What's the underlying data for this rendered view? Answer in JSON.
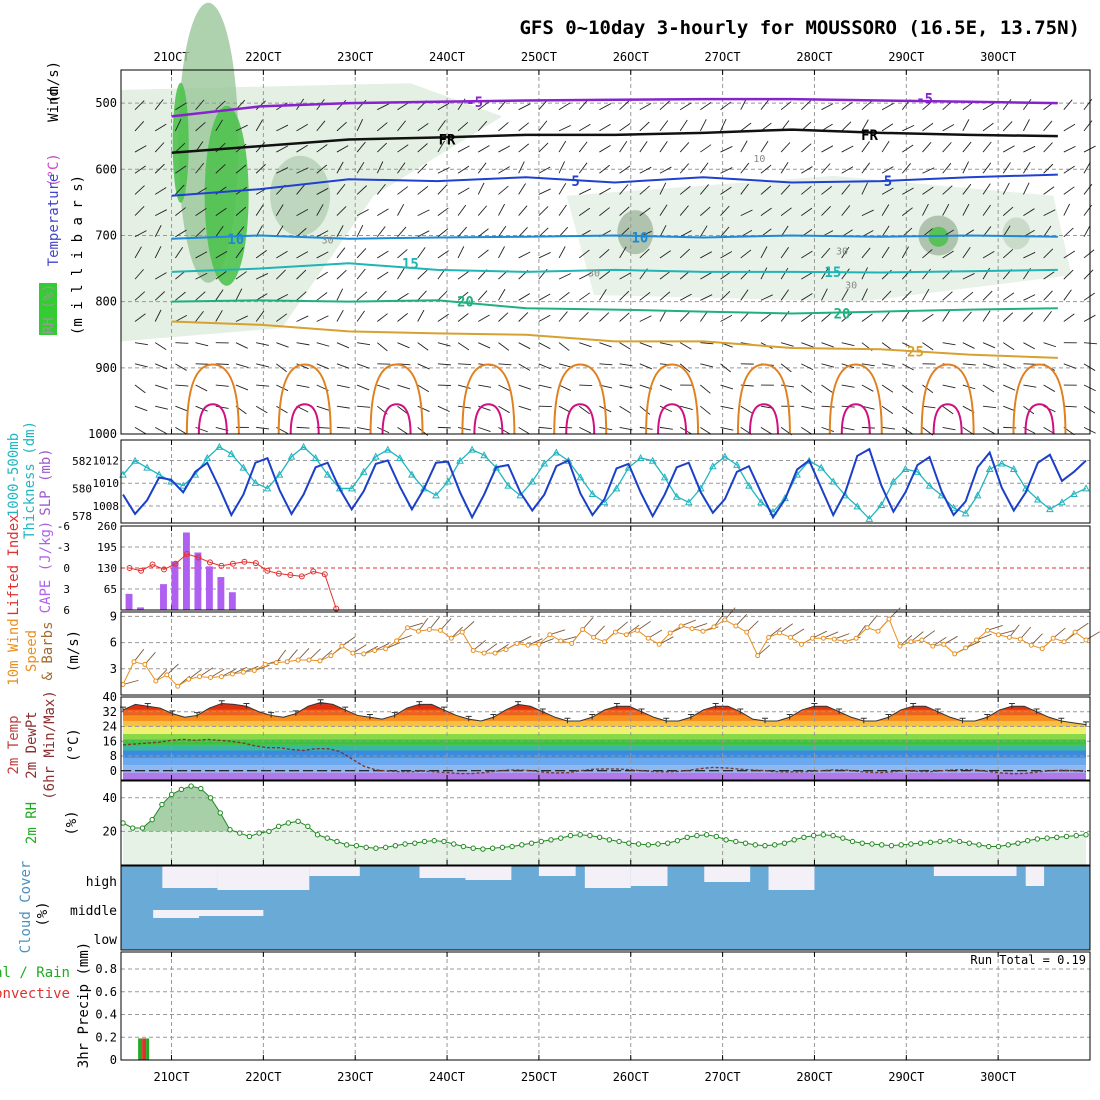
{
  "title": "GFS 0~10day 3-hourly for MOUSSORO (16.5E, 13.75N)",
  "dates": [
    "21OCT",
    "22OCT",
    "23OCT",
    "24OCT",
    "25OCT",
    "26OCT",
    "27OCT",
    "28OCT",
    "29OCT",
    "30OCT"
  ],
  "colors": {
    "temp_label": "#e06060",
    "rh_label": "#22aa22",
    "wind_label": "#000000",
    "thickness": "#22b5c0",
    "slp": "#1a3fc8",
    "lifted": "#e03030",
    "cape": "#b060f0",
    "wind10": "#e89020",
    "rh2m": "#228822",
    "cloud": "#6aaad6",
    "precip_total": "#22aa22",
    "precip_conv": "#e03030"
  },
  "chart_data": [
    {
      "type": "contour",
      "panel": "upper_air",
      "ylabel_wind": "Wind",
      "ylabel_wind_unit": "(m/s)",
      "ylabel_temp": "Temperature",
      "ylabel_temp_unit": "(°C)",
      "ylabel_rh": "RH (%)",
      "ylabel_p": "(m i l l i b a r s)",
      "levels": [
        500,
        600,
        700,
        800,
        900,
        1000
      ],
      "ylim": [
        450,
        1000
      ],
      "grid": true,
      "isotherm_labels": [
        {
          "text": "-5",
          "day": 3.3,
          "p": 498
        },
        {
          "text": "-5",
          "day": 8.2,
          "p": 493
        },
        {
          "text": "FR",
          "day": 3.0,
          "p": 555
        },
        {
          "text": "FR",
          "day": 7.6,
          "p": 548
        },
        {
          "text": "5",
          "day": 4.4,
          "p": 618
        },
        {
          "text": "5",
          "day": 7.8,
          "p": 618
        },
        {
          "text": "10",
          "day": 0.7,
          "p": 705
        },
        {
          "text": "10",
          "day": 5.1,
          "p": 703
        },
        {
          "text": "15",
          "day": 2.6,
          "p": 742
        },
        {
          "text": "15",
          "day": 7.2,
          "p": 755
        },
        {
          "text": "20",
          "day": 3.2,
          "p": 800
        },
        {
          "text": "20",
          "day": 7.3,
          "p": 818
        },
        {
          "text": "25",
          "day": 8.1,
          "p": 875
        }
      ],
      "rh_labels": [
        {
          "text": "10",
          "day": 6.4,
          "p": 583
        },
        {
          "text": "30",
          "day": 1.7,
          "p": 706
        },
        {
          "text": "30",
          "day": 4.6,
          "p": 756
        },
        {
          "text": "30",
          "day": 7.3,
          "p": 723
        },
        {
          "text": "30",
          "day": 7.4,
          "p": 774
        }
      ]
    },
    {
      "type": "line",
      "panel": "slp_thickness",
      "ylabel_left": "1000-500mb",
      "ylabel_left2": "Thickness (dm)",
      "ylabel_right": "SLP (mb)",
      "thickness_ticks": [
        578,
        580,
        582
      ],
      "slp_ticks": [
        1008,
        1010,
        1012
      ],
      "thickness_lim": [
        577.5,
        583.5
      ],
      "slp_lim": [
        1006.5,
        1013.8
      ],
      "thickness": [
        581,
        582,
        581.5,
        581,
        580.5,
        580.2,
        581,
        582.2,
        583,
        582.5,
        581.5,
        580.4,
        580,
        581,
        582.3,
        583,
        582.2,
        581,
        580,
        580,
        581.2,
        582.3,
        582.8,
        582.2,
        581,
        580,
        579.5,
        580.5,
        582,
        582.8,
        582.4,
        581.5,
        580.2,
        579.5,
        580.5,
        581.8,
        582.6,
        582,
        580.8,
        579.6,
        579,
        580,
        581.5,
        582.2,
        582,
        580.8,
        579.4,
        579,
        580,
        581.6,
        582.3,
        581.7,
        580.2,
        579,
        578.3,
        579.3,
        581,
        582,
        581.5,
        580.5,
        579.5,
        578.7,
        577.8,
        578.8,
        580.5,
        581.4,
        581.2,
        580.2,
        579.5,
        578.6,
        578.2,
        579.5,
        581.4,
        581.8,
        581.4,
        580,
        579.2,
        578.5,
        579,
        579.6,
        580
      ],
      "slp": [
        1009,
        1007.3,
        1008.5,
        1010.5,
        1010.3,
        1009.2,
        1011,
        1011.8,
        1009.6,
        1007.2,
        1009,
        1011.8,
        1012.2,
        1009.4,
        1007.3,
        1009,
        1011.4,
        1011.8,
        1009.5,
        1007.7,
        1009.3,
        1011.7,
        1012,
        1009.7,
        1007.7,
        1009.5,
        1011.8,
        1011.9,
        1009.2,
        1007,
        1009,
        1011.4,
        1011.6,
        1009.2,
        1007.6,
        1009,
        1011.5,
        1012,
        1009.1,
        1007.2,
        1008.6,
        1011.3,
        1011.7,
        1009.2,
        1007.1,
        1009,
        1011.4,
        1011.8,
        1009.2,
        1007.4,
        1008.6,
        1011,
        1011.5,
        1009.2,
        1007,
        1008.6,
        1011.2,
        1012,
        1009.6,
        1007.2,
        1009.2,
        1012.4,
        1013,
        1009.8,
        1007.5,
        1009.2,
        1011.6,
        1012.3,
        1009.3,
        1007.2,
        1008.4,
        1011.4,
        1012.7,
        1009.6,
        1007.6,
        1009.2,
        1011.8,
        1012.5,
        1010.2,
        1011,
        1012
      ]
    },
    {
      "type": "bar",
      "panel": "cape_li",
      "ylabel_left": "Lifted Index",
      "ylabel_right": "CAPE (J/kg)",
      "li_ticks": [
        -6,
        -3,
        0,
        3,
        6
      ],
      "cape_ticks": [
        65,
        130,
        195,
        260
      ],
      "li_lim": [
        -6,
        6
      ],
      "cape_lim": [
        0,
        260
      ],
      "cape": [
        50,
        8,
        0,
        80,
        150,
        240,
        178,
        135,
        102,
        55
      ],
      "lifted_index": [
        0,
        0.4,
        -0.5,
        0.2,
        -0.6,
        -2,
        -1.5,
        -0.8,
        -0.3,
        -0.6,
        -0.9,
        -0.7,
        0.4,
        0.8,
        1,
        1.2,
        0.5,
        0.9,
        5.8
      ]
    },
    {
      "type": "line",
      "panel": "wind10m",
      "ylabel": "10m Wind",
      "ylabel2": "Speed",
      "ylabel3": "& Barbs",
      "ylabel_unit": "(m/s)",
      "ticks": [
        3,
        6,
        9
      ],
      "ylim": [
        0,
        9.5
      ],
      "speed": [
        1.2,
        3.8,
        3.5,
        1.6,
        2.3,
        1,
        1.8,
        2.1,
        2,
        2.1,
        2.4,
        2.6,
        2.8,
        3.5,
        3.7,
        3.8,
        4,
        4,
        3.9,
        4.5,
        5.6,
        4.8,
        4.7,
        5.1,
        5.3,
        6.2,
        7.7,
        7.3,
        7.5,
        7.4,
        6.5,
        7.2,
        5.1,
        4.8,
        4.8,
        5.2,
        5.9,
        5.7,
        5.8,
        6.9,
        6.2,
        5.9,
        7.5,
        6.6,
        6.1,
        7.2,
        6.9,
        7.4,
        6.5,
        5.8,
        7.1,
        7.9,
        7.6,
        7.3,
        7.8,
        8.6,
        7.9,
        7.2,
        4.5,
        6.6,
        7.1,
        6.6,
        5.8,
        6.5,
        6.5,
        6.4,
        6.1,
        6.5,
        7.7,
        7.3,
        8.7,
        5.6,
        6.1,
        6.3,
        5.6,
        5.8,
        4.7,
        5.4,
        6.3,
        7.4,
        6.9,
        6.6,
        6.4,
        5.7,
        5.3,
        6.5,
        6.1,
        7.2,
        6.3
      ]
    },
    {
      "type": "area",
      "panel": "temp2m",
      "ylabel": "2m Temp",
      "ylabel2": "2m DewPt",
      "ylabel3": "(6hr Min/Max)",
      "ylabel_unit": "(°C)",
      "ticks": [
        0,
        8,
        16,
        24,
        32,
        40
      ],
      "ylim": [
        -5,
        40
      ],
      "temp": [
        33,
        36,
        35,
        34,
        31,
        29,
        30,
        34,
        36.5,
        36,
        35,
        32,
        30,
        29,
        31,
        35,
        37,
        36,
        33,
        30,
        29,
        28,
        30,
        34,
        36,
        36,
        33,
        30,
        28,
        27,
        29,
        33,
        36,
        35,
        32,
        29,
        27,
        27,
        29,
        33,
        35,
        35,
        32,
        29,
        27,
        27,
        29,
        33,
        35,
        35,
        32,
        28,
        27,
        27,
        29,
        33,
        35,
        35,
        32,
        29,
        27,
        27,
        29,
        33,
        35,
        35,
        32,
        29,
        27,
        27,
        29,
        33,
        35,
        35,
        32,
        29,
        27,
        26,
        25
      ],
      "dewpt": [
        14,
        14.5,
        15,
        15.5,
        16.5,
        17,
        16.5,
        17,
        16.5,
        16,
        15,
        13.5,
        12.5,
        12.5,
        11.5,
        11,
        12,
        12,
        10.5,
        6.5,
        2.5,
        0.5,
        -0.2,
        -0.5,
        -0.5,
        -0.2,
        -0.6,
        -1,
        -1.5,
        -1.5,
        -1,
        -0.2,
        0.4,
        0.4,
        0,
        -0.8,
        -1.2,
        -1,
        0,
        0.8,
        1,
        1,
        0.6,
        0,
        -0.4,
        -0.6,
        -0.4,
        0.2,
        1.2,
        1.8,
        1.6,
        1,
        0.5,
        0.2,
        -0.4,
        -0.6,
        -0.6,
        -0.4,
        0,
        0.5,
        0.4,
        -0.3,
        -0.8,
        -1,
        -0.5,
        0,
        -0.3,
        -0.5,
        0,
        0.5,
        0.6,
        0.3,
        -0.5,
        -1.2,
        -1.6,
        -1.4,
        -0.6,
        0,
        0.3,
        0,
        -0.4
      ]
    },
    {
      "type": "area",
      "panel": "rh2m",
      "ylabel": "2m RH",
      "ylabel_unit": "(%)",
      "ticks": [
        20,
        40
      ],
      "ylim": [
        0,
        50
      ],
      "rh": [
        25,
        22,
        22,
        27,
        36,
        42,
        45,
        47,
        45.5,
        40,
        31,
        21,
        19,
        17,
        19,
        20,
        23,
        25,
        26,
        23,
        18,
        16,
        14,
        12,
        11.5,
        10.5,
        10,
        10.5,
        11.5,
        12.5,
        13,
        14,
        14.5,
        14,
        12.5,
        11,
        10,
        9.5,
        10,
        10.5,
        11,
        12,
        13,
        14,
        15,
        16,
        17.5,
        18,
        17.5,
        16.5,
        15,
        14,
        13,
        12.5,
        12,
        12.5,
        13,
        14.5,
        16.5,
        17.5,
        18,
        17,
        15,
        14,
        13,
        12,
        11.5,
        12,
        13,
        15,
        16.5,
        17.5,
        18,
        17.5,
        16,
        14,
        13,
        12.5,
        12,
        11.5,
        12,
        12.5,
        13,
        13.5,
        14,
        14.5,
        14,
        13,
        12,
        11,
        11,
        12,
        13,
        14.5,
        15.5,
        16,
        16.5,
        17,
        17.5,
        18
      ]
    },
    {
      "type": "bar",
      "panel": "cloud",
      "ylabel": "Cloud Cover",
      "ylabel_unit": "(%)",
      "categories": [
        "high",
        "middle",
        "low"
      ]
    },
    {
      "type": "bar",
      "panel": "precip",
      "ylabel": "3hr Precip (mm)",
      "ylabel_total": "Total / Rain",
      "ylabel_conv": "Convective",
      "run_total": "Run Total = 0.19",
      "ticks": [
        0,
        0.2,
        0.4,
        0.6,
        0.8
      ],
      "ylim": [
        0,
        0.95
      ],
      "bars": [
        {
          "day": -0.32,
          "total": 0.19,
          "convective": 0.19
        }
      ]
    }
  ]
}
